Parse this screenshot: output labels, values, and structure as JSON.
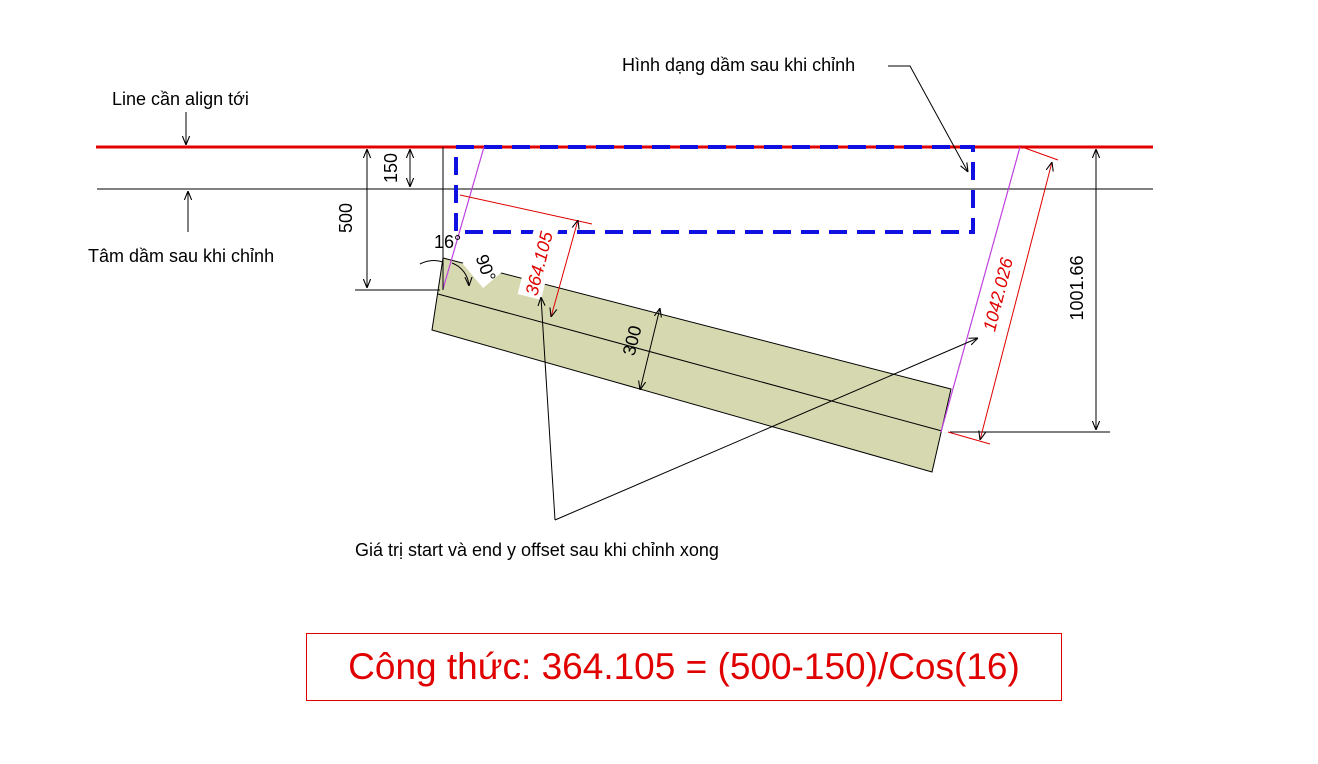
{
  "labels": {
    "align_line": "Line cần align tới",
    "beam_center": "Tâm dầm sau khi chỉnh",
    "beam_shape": "Hình dạng dầm sau khi chỉnh",
    "offsets": "Giá trị start và end y offset sau khi chỉnh xong"
  },
  "dimensions": {
    "d150": "150",
    "d500": "500",
    "d300": "300",
    "d1001": "1001.66",
    "start_offset": "364.105",
    "end_offset": "1042.026",
    "angle16": "16°",
    "angle90": "90°"
  },
  "formula": "Công thức: 364.105 = (500-150)/Cos(16)",
  "colors": {
    "align_line": "#e00000",
    "beam_outline": "#1010e0",
    "beam_fill": "#d6d8b0",
    "dim_red": "#e00000",
    "projection": "#c040e0"
  }
}
